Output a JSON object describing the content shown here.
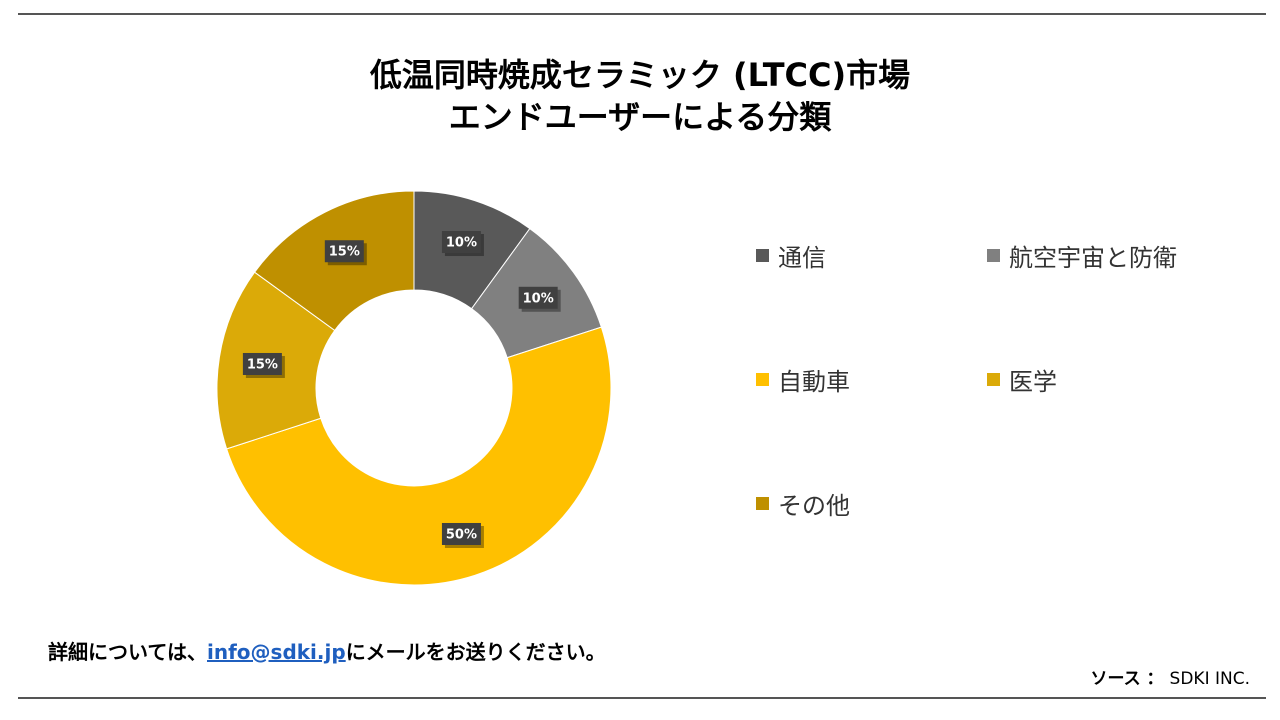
{
  "title": {
    "line1": "低温同時焼成セラミック (LTCC)市場",
    "line2": "エンドユーザーによる分類"
  },
  "chart_data": {
    "type": "pie",
    "categories": [
      "通信",
      "航空宇宙と防衛",
      "自動車",
      "医学",
      "その他"
    ],
    "values": [
      10,
      10,
      50,
      15,
      15
    ],
    "value_labels": [
      "10%",
      "10%",
      "50%",
      "15%",
      "15%"
    ],
    "colors": [
      "#595959",
      "#808080",
      "#FFC000",
      "#DBAA08",
      "#BF9000"
    ],
    "legend_position": "right"
  },
  "footer": {
    "prefix": "詳細については、",
    "email": "info@sdki.jp",
    "suffix": "にメールをお送りください。"
  },
  "source": {
    "label": "ソース ：",
    "value": "SDKI INC."
  }
}
